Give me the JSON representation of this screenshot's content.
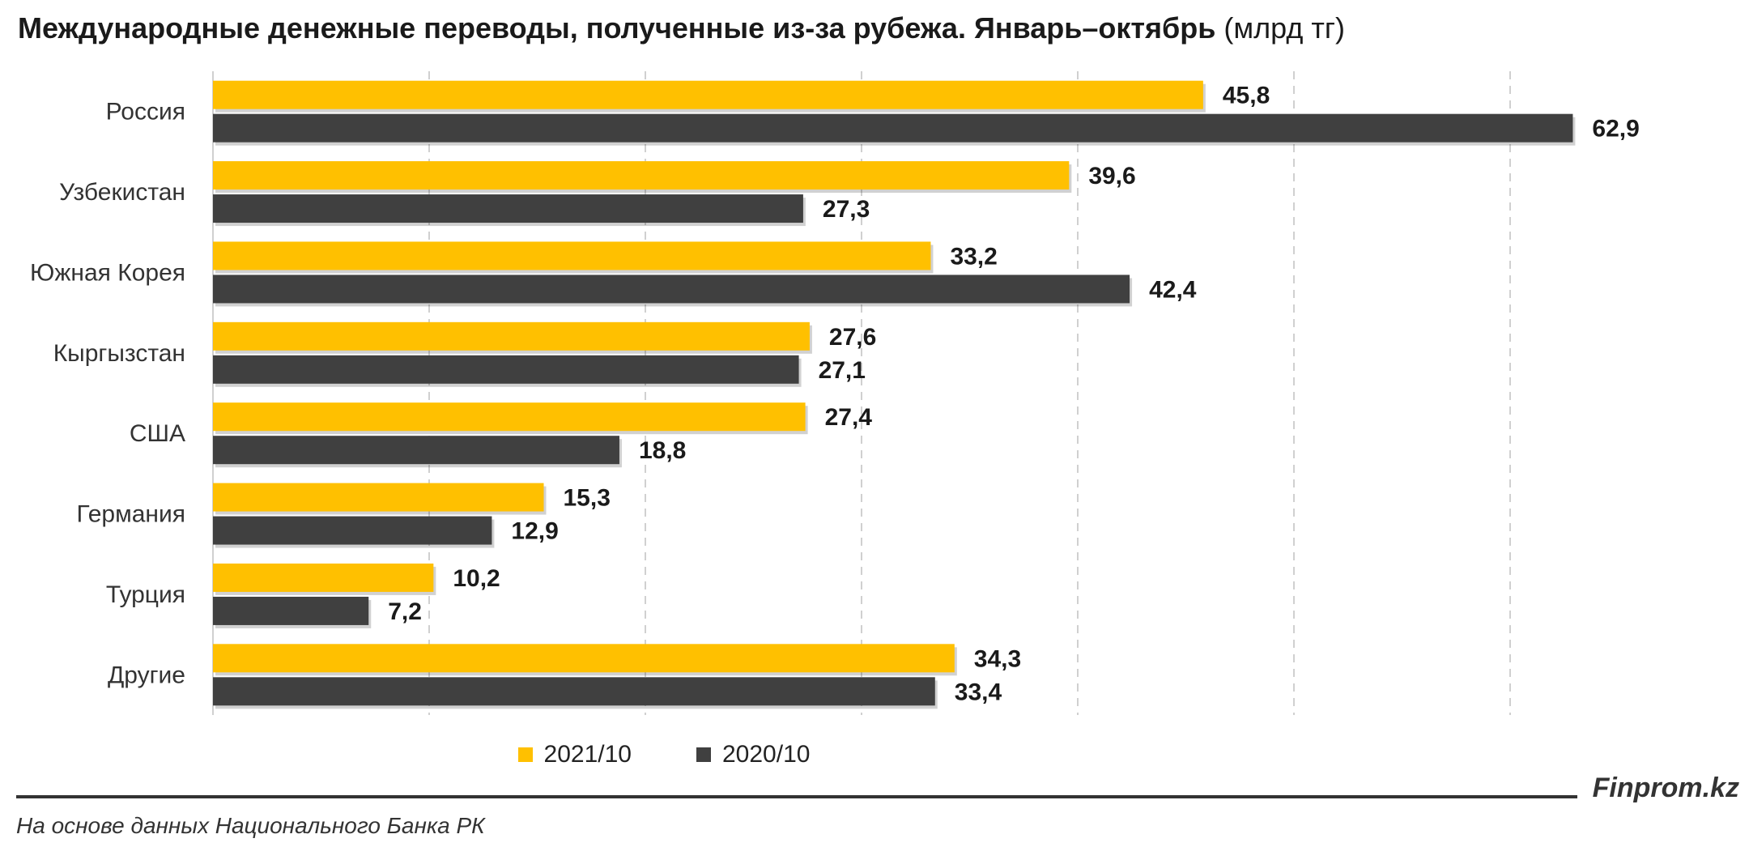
{
  "title": {
    "bold": "Международные денежные переводы, полученные из-за рубежа. Январь–октябрь",
    "unit": "(млрд тг)"
  },
  "chart_data": {
    "type": "bar",
    "orientation": "horizontal",
    "title": "Международные денежные переводы, полученные из-за рубежа. Январь–октябрь (млрд тг)",
    "categories": [
      "Россия",
      "Узбекистан",
      "Южная Корея",
      "Кыргызстан",
      "США",
      "Германия",
      "Турция",
      "Другие"
    ],
    "series": [
      {
        "name": "2021/10",
        "color": "#FFC000",
        "values": [
          45.8,
          39.6,
          33.2,
          27.6,
          27.4,
          15.3,
          10.2,
          34.3
        ],
        "labels": [
          "45,8",
          "39,6",
          "33,2",
          "27,6",
          "27,4",
          "15,3",
          "10,2",
          "34,3"
        ]
      },
      {
        "name": "2020/10",
        "color": "#404040",
        "values": [
          62.9,
          27.3,
          42.4,
          27.1,
          18.8,
          12.9,
          7.2,
          33.4
        ],
        "labels": [
          "62,9",
          "27,3",
          "42,4",
          "27,1",
          "18,8",
          "12,9",
          "7,2",
          "33,4"
        ]
      }
    ],
    "xlim": [
      0,
      70
    ],
    "grid": "vertical-dashed",
    "legend": "bottom"
  },
  "legend": {
    "items": [
      "2021/10",
      "2020/10"
    ]
  },
  "footer": {
    "brand": "Finprom.kz",
    "source": "На основе данных Национального Банка РК"
  },
  "colors": {
    "series_2021": "#FFC000",
    "series_2020": "#404040",
    "grid": "#d0d0d0"
  }
}
